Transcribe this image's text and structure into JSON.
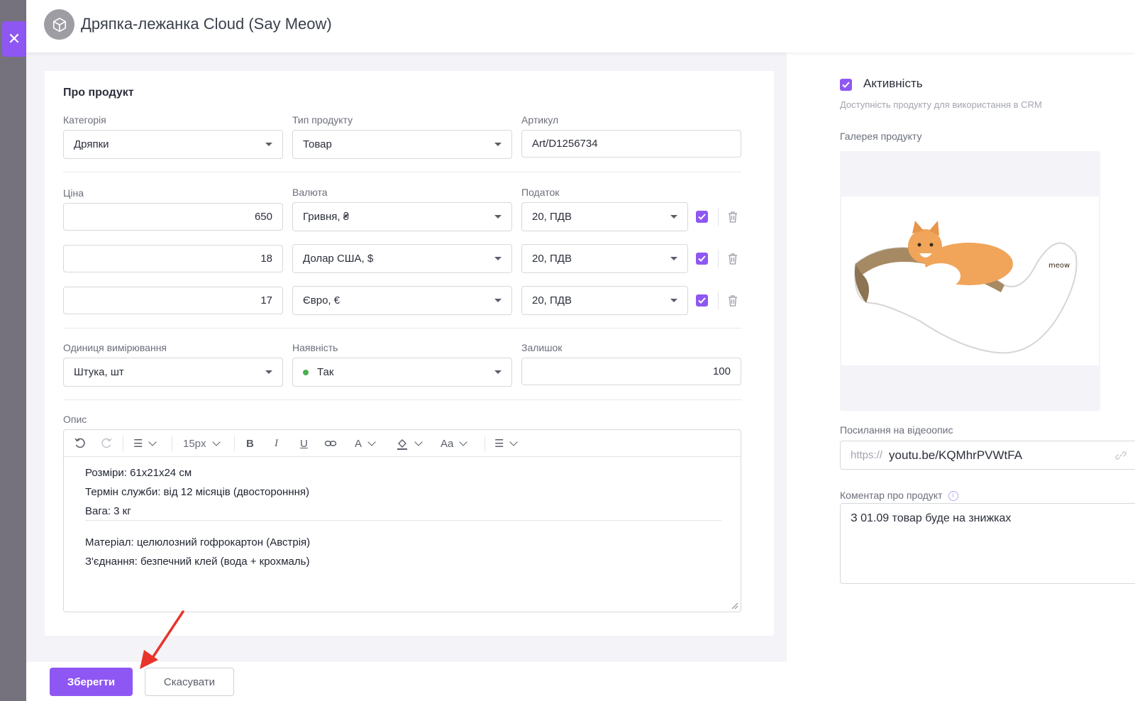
{
  "header": {
    "title": "Дряпка-лежанка Cloud (Say Meow)",
    "avatar_icon": "cube-icon"
  },
  "about": {
    "section_title": "Про продукт",
    "category": {
      "label": "Категорія",
      "value": "Дряпки"
    },
    "product_type": {
      "label": "Тип продукту",
      "value": "Товар"
    },
    "sku": {
      "label": "Артикул",
      "value": "Art/D1256734"
    }
  },
  "pricing": {
    "price_label": "Ціна",
    "currency_label": "Валюта",
    "tax_label": "Податок",
    "rows": [
      {
        "price": "650",
        "currency": "Гривня, ₴",
        "tax": "20, ПДВ",
        "checked": true
      },
      {
        "price": "18",
        "currency": "Долар США, $",
        "tax": "20, ПДВ",
        "checked": true
      },
      {
        "price": "17",
        "currency": "Євро, €",
        "tax": "20, ПДВ",
        "checked": true
      }
    ]
  },
  "stock": {
    "unit": {
      "label": "Одиниця вимірювання",
      "value": "Штука, шт"
    },
    "availability": {
      "label": "Наявність",
      "value": "Так",
      "status_color": "#4caf50"
    },
    "remaining": {
      "label": "Залишок",
      "value": "100"
    }
  },
  "description": {
    "label": "Опис",
    "toolbar": {
      "font_size": "15px",
      "case_label": "Aa"
    },
    "lines_1": [
      "Розміри: 61x21x24 см",
      "Термін служби: від 12 місяців (двосторонння)",
      "Вага: 3 кг"
    ],
    "lines_2": [
      "Матеріал: целюлозний гофрокартон (Австрія)",
      "З'єднання: безпечний клей (вода + крохмаль)"
    ]
  },
  "footer": {
    "save_label": "Зберегти",
    "cancel_label": "Скасувати"
  },
  "sidebar": {
    "active_label": "Активність",
    "active_hint": "Доступність продукту для використання в CRM",
    "gallery_label": "Галерея продукту",
    "video_label": "Посилання на відеоопис",
    "video_prefix": "https://",
    "video_value": "youtu.be/KQMhrPVWtFA",
    "comment_label": "Коментар про продукт",
    "comment_value": "З 01.09 товар буде на знижках"
  },
  "colors": {
    "accent": "#8e57f3",
    "arrow": "#e8342a"
  }
}
